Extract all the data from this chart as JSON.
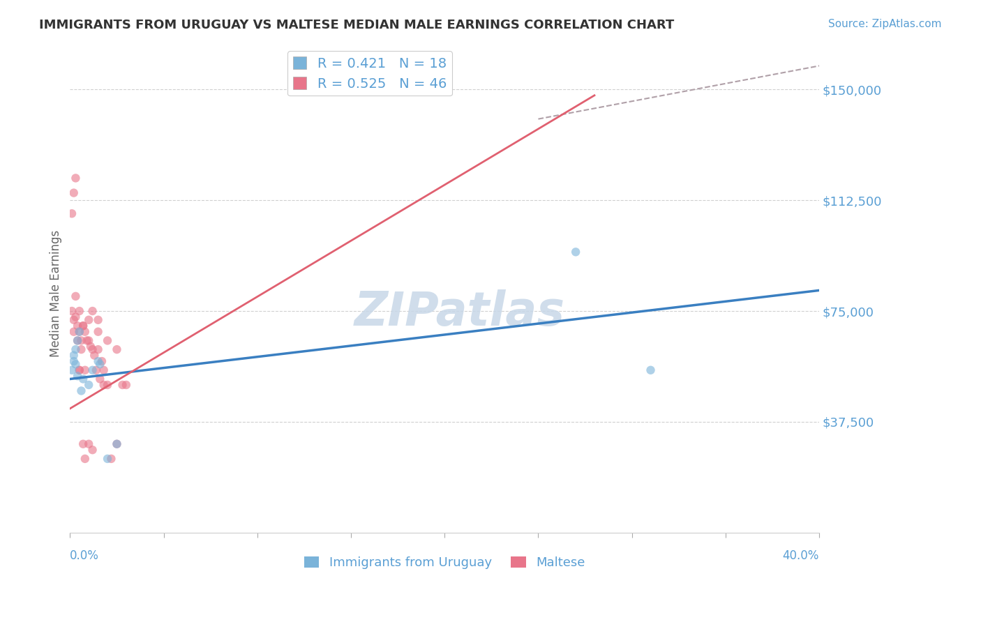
{
  "title": "IMMIGRANTS FROM URUGUAY VS MALTESE MEDIAN MALE EARNINGS CORRELATION CHART",
  "source": "Source: ZipAtlas.com",
  "ylabel": "Median Male Earnings",
  "ytick_labels": [
    "$37,500",
    "$75,000",
    "$112,500",
    "$150,000"
  ],
  "ytick_values": [
    37500,
    75000,
    112500,
    150000
  ],
  "xmin": 0.0,
  "xmax": 0.4,
  "ymin": 0,
  "ymax": 162000,
  "legend_entries": [
    {
      "label": "R = 0.421   N = 18",
      "color": "#a8c4e0"
    },
    {
      "label": "R = 0.525   N = 46",
      "color": "#f4a0b0"
    }
  ],
  "legend2_entries": [
    {
      "label": "Immigrants from Uruguay",
      "color": "#a8c4e0"
    },
    {
      "label": "Maltese",
      "color": "#f4a0b0"
    }
  ],
  "uruguay_scatter": {
    "x": [
      0.001,
      0.002,
      0.002,
      0.003,
      0.003,
      0.004,
      0.004,
      0.005,
      0.006,
      0.007,
      0.01,
      0.012,
      0.015,
      0.016,
      0.02,
      0.025,
      0.27,
      0.31
    ],
    "y": [
      55000,
      60000,
      58000,
      62000,
      57000,
      65000,
      53000,
      68000,
      48000,
      52000,
      50000,
      55000,
      58000,
      57000,
      25000,
      30000,
      95000,
      55000
    ]
  },
  "maltese_scatter": {
    "x": [
      0.001,
      0.001,
      0.002,
      0.002,
      0.003,
      0.003,
      0.004,
      0.004,
      0.005,
      0.005,
      0.006,
      0.006,
      0.007,
      0.008,
      0.009,
      0.01,
      0.011,
      0.012,
      0.013,
      0.014,
      0.015,
      0.016,
      0.017,
      0.018,
      0.02,
      0.022,
      0.025,
      0.028,
      0.03,
      0.002,
      0.003,
      0.005,
      0.007,
      0.01,
      0.015,
      0.02,
      0.025,
      0.018,
      0.008,
      0.012,
      0.015,
      0.005,
      0.008,
      0.01,
      0.012,
      0.007
    ],
    "y": [
      108000,
      75000,
      72000,
      68000,
      73000,
      80000,
      65000,
      70000,
      68000,
      75000,
      65000,
      62000,
      70000,
      68000,
      65000,
      72000,
      63000,
      62000,
      60000,
      55000,
      68000,
      52000,
      58000,
      55000,
      50000,
      25000,
      30000,
      50000,
      50000,
      115000,
      120000,
      55000,
      70000,
      65000,
      72000,
      65000,
      62000,
      50000,
      55000,
      75000,
      62000,
      55000,
      25000,
      30000,
      28000,
      30000
    ]
  },
  "blue_line": {
    "x": [
      0.0,
      0.4
    ],
    "y": [
      52000,
      82000
    ]
  },
  "pink_line": {
    "x": [
      0.0,
      0.28
    ],
    "y": [
      42000,
      148000
    ]
  },
  "gray_dashed_line": {
    "x": [
      0.25,
      0.4
    ],
    "y": [
      140000,
      158000
    ]
  },
  "scatter_size": 80,
  "scatter_alpha": 0.6,
  "blue_color": "#7ab3d9",
  "pink_color": "#e8758a",
  "blue_line_color": "#3a7fc1",
  "pink_line_color": "#e06070",
  "gray_dashed_color": "#b0a0a8",
  "grid_color": "#d0d0d0",
  "axis_label_color": "#5a9fd4",
  "title_color": "#333333",
  "watermark_color": "#c8d8e8",
  "background_color": "#ffffff"
}
